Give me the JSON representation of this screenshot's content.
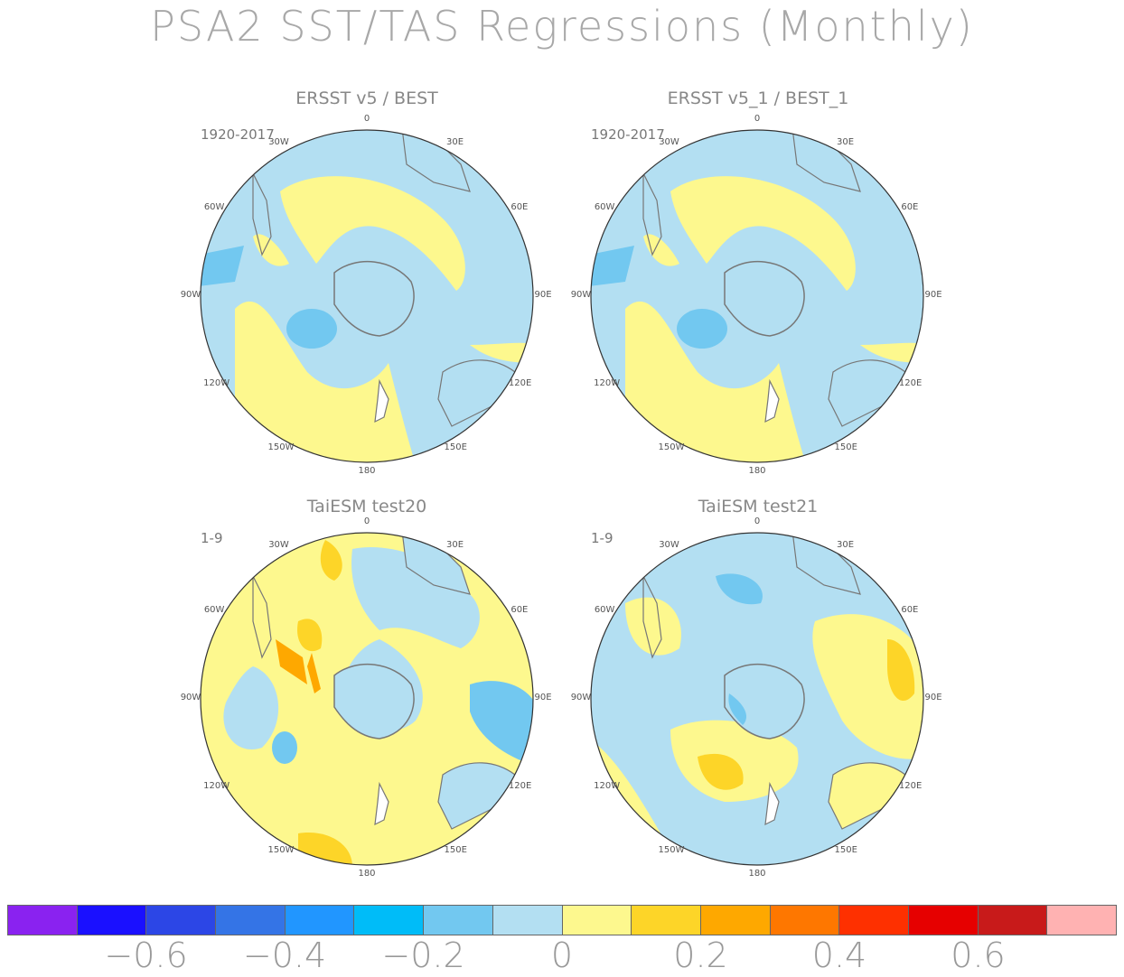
{
  "title": "PSA2 SST/TAS Regressions (Monthly)",
  "panels": [
    {
      "title": "ERSST v5 / BEST",
      "period": "1920-2017"
    },
    {
      "title": "ERSST v5_1 / BEST_1",
      "period": "1920-2017"
    },
    {
      "title": "TaiESM test20",
      "period": "1-9"
    },
    {
      "title": "TaiESM test21",
      "period": "1-9"
    }
  ],
  "lon_labels": {
    "0": "0",
    "30E": "30E",
    "60E": "60E",
    "90E": "90E",
    "120E": "120E",
    "150E": "150E",
    "180": "180",
    "150W": "150W",
    "120W": "120W",
    "90W": "90W",
    "60W": "60W",
    "30W": "30W"
  },
  "colorbar": {
    "colors": [
      "#8a22f0",
      "#1a10ff",
      "#2c46e6",
      "#3474e6",
      "#2196ff",
      "#00bcf8",
      "#72c8f0",
      "#b3dff2",
      "#fdf88e",
      "#fdd528",
      "#fea800",
      "#fe7700",
      "#fe3000",
      "#e60000",
      "#c81a1a",
      "#ffb2b2"
    ],
    "labels": [
      "−0.6",
      "−0.4",
      "−0.2",
      "0",
      "0.2",
      "0.4",
      "0.6"
    ]
  },
  "map_colors": {
    "ocean_neg": "#b3dff2",
    "ocean_pos": "#fdf88e",
    "neg2": "#72c8f0",
    "pos2": "#fdd528",
    "pos3": "#fea800",
    "coast": "#777777"
  }
}
